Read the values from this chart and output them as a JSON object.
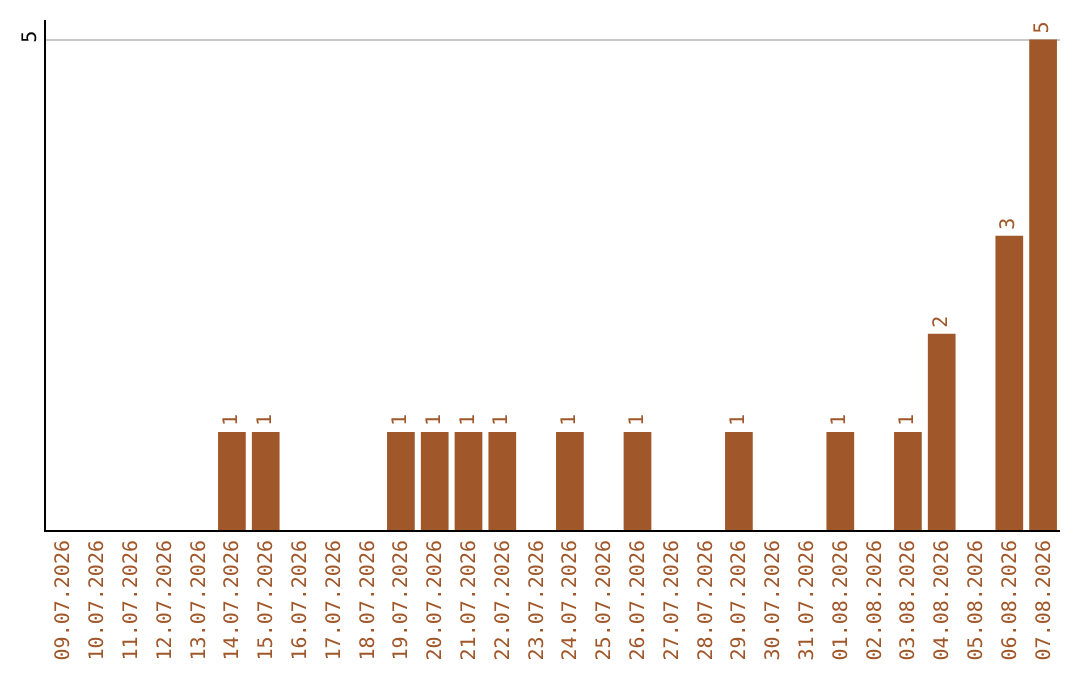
{
  "chart_data": {
    "type": "bar",
    "categories": [
      "09.07.2026",
      "10.07.2026",
      "11.07.2026",
      "12.07.2026",
      "13.07.2026",
      "14.07.2026",
      "15.07.2026",
      "16.07.2026",
      "17.07.2026",
      "18.07.2026",
      "19.07.2026",
      "20.07.2026",
      "21.07.2026",
      "22.07.2026",
      "23.07.2026",
      "24.07.2026",
      "25.07.2026",
      "26.07.2026",
      "27.07.2026",
      "28.07.2026",
      "29.07.2026",
      "30.07.2026",
      "31.07.2026",
      "01.08.2026",
      "02.08.2026",
      "03.08.2026",
      "04.08.2026",
      "05.08.2026",
      "06.08.2026",
      "07.08.2026"
    ],
    "values": [
      0,
      0,
      0,
      0,
      0,
      1,
      1,
      0,
      0,
      0,
      1,
      1,
      1,
      1,
      0,
      1,
      0,
      1,
      0,
      0,
      1,
      0,
      0,
      1,
      0,
      1,
      2,
      0,
      3,
      5
    ],
    "value_labels": [
      null,
      null,
      null,
      null,
      null,
      "1",
      "1",
      null,
      null,
      null,
      "1",
      "1",
      "1",
      "1",
      null,
      "1",
      null,
      "1",
      null,
      null,
      "1",
      null,
      null,
      "1",
      null,
      "1",
      "2",
      null,
      "3",
      "5"
    ],
    "color": "#a0572a",
    "ylim": [
      0,
      5.2
    ],
    "yticks": [
      5
    ],
    "grid": "y",
    "legend": false
  }
}
